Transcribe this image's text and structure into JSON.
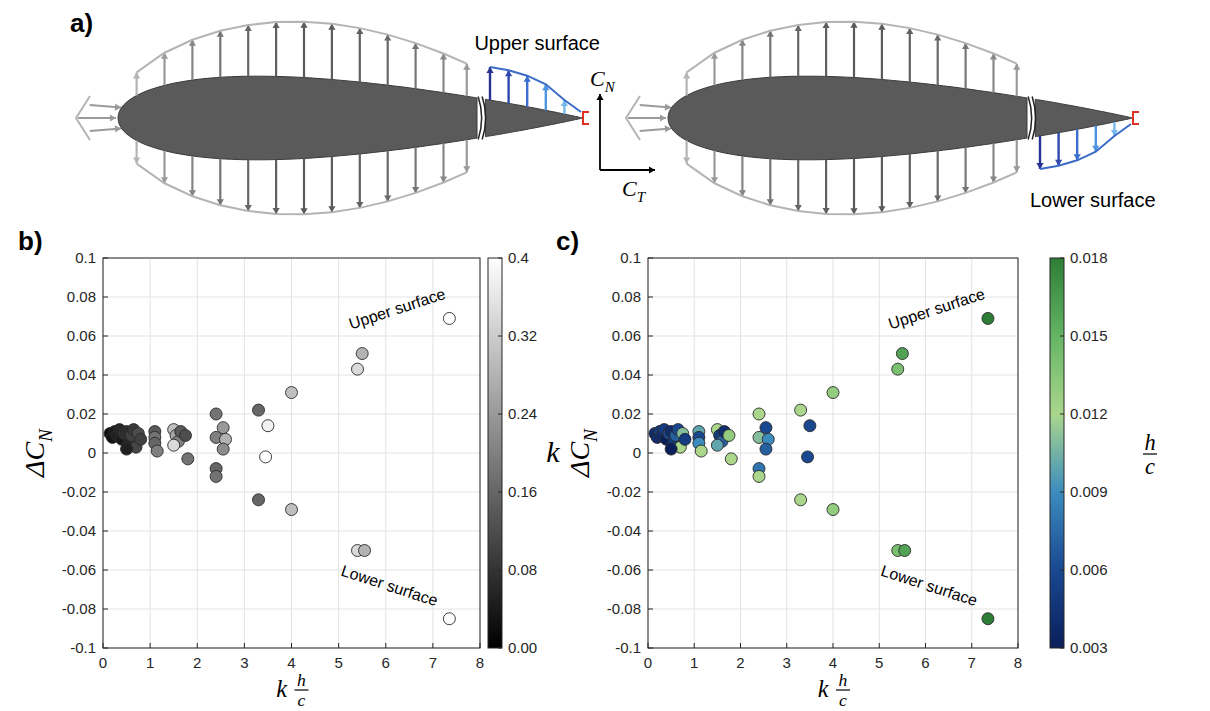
{
  "diagram": {
    "panel_label": "a)",
    "labels": [
      "Upper surface",
      "Lower surface"
    ],
    "axis_labels": [
      {
        "text": "C",
        "subscript": "N"
      },
      {
        "text": "C",
        "subscript": "T"
      }
    ]
  },
  "chart_data": [
    {
      "type": "scatter",
      "panel_label": "b)",
      "x_label": {
        "factor": "k",
        "numerator": "h",
        "denominator": "c"
      },
      "y_label": {
        "text": "ΔC",
        "subscript": "N"
      },
      "x": [
        0.15,
        0.2,
        0.25,
        0.3,
        0.35,
        0.4,
        0.45,
        0.5,
        0.55,
        0.6,
        0.65,
        0.7,
        0.75,
        0.8,
        0.5,
        1.1,
        1.1,
        1.1,
        1.15,
        1.5,
        1.55,
        1.6,
        1.5,
        1.65,
        1.75,
        1.8,
        2.4,
        2.4,
        2.4,
        2.4,
        2.55,
        2.6,
        2.55,
        3.3,
        3.3,
        3.5,
        3.45,
        4.0,
        4.0,
        5.4,
        5.5,
        5.4,
        5.55,
        7.35,
        7.35
      ],
      "values": [
        0.01,
        0.008,
        0.011,
        0.009,
        0.012,
        0.007,
        0.01,
        0.011,
        0.005,
        0.009,
        0.012,
        0.003,
        0.01,
        0.007,
        0.002,
        0.011,
        0.008,
        0.005,
        0.001,
        0.012,
        0.009,
        0.006,
        0.004,
        0.011,
        0.009,
        -0.003,
        0.02,
        0.008,
        -0.008,
        -0.012,
        0.013,
        0.007,
        0.002,
        0.022,
        -0.024,
        0.014,
        -0.002,
        0.031,
        -0.029,
        0.043,
        0.051,
        -0.05,
        -0.05,
        0.069,
        -0.085
      ],
      "color_values": [
        0.02,
        0.03,
        0.04,
        0.05,
        0.06,
        0.04,
        0.08,
        0.07,
        0.06,
        0.1,
        0.09,
        0.11,
        0.12,
        0.1,
        0.05,
        0.14,
        0.18,
        0.16,
        0.2,
        0.3,
        0.26,
        0.2,
        0.34,
        0.14,
        0.12,
        0.18,
        0.18,
        0.2,
        0.16,
        0.18,
        0.24,
        0.28,
        0.22,
        0.16,
        0.16,
        0.38,
        0.4,
        0.3,
        0.3,
        0.34,
        0.28,
        0.34,
        0.28,
        0.4,
        0.4
      ],
      "colorbar": {
        "label": "k",
        "lim": [
          0,
          0.4
        ],
        "ticks": [
          {
            "value": 0,
            "label": "0.00"
          },
          0.08,
          0.16,
          0.24,
          0.32,
          0.4
        ]
      },
      "xlim": [
        0,
        8
      ],
      "ylim": [
        -0.1,
        0.1
      ],
      "xticks": [
        0,
        1,
        2,
        3,
        4,
        5,
        6,
        7,
        8
      ],
      "yticks": [
        -0.1,
        -0.08,
        -0.06,
        -0.04,
        -0.02,
        0,
        0.02,
        0.04,
        0.06,
        0.08,
        0.1
      ],
      "grid": true,
      "marker": "circle",
      "annotations": [
        "Upper surface",
        "Lower surface"
      ]
    },
    {
      "type": "scatter",
      "panel_label": "c)",
      "x_label": {
        "factor": "k",
        "numerator": "h",
        "denominator": "c"
      },
      "y_label": {
        "text": "ΔC",
        "subscript": "N"
      },
      "x": [
        0.15,
        0.2,
        0.25,
        0.3,
        0.35,
        0.4,
        0.45,
        0.5,
        0.55,
        0.6,
        0.65,
        0.7,
        0.75,
        0.8,
        0.5,
        1.1,
        1.1,
        1.1,
        1.15,
        1.5,
        1.55,
        1.6,
        1.5,
        1.65,
        1.75,
        1.8,
        2.4,
        2.4,
        2.4,
        2.4,
        2.55,
        2.6,
        2.55,
        3.3,
        3.3,
        3.5,
        3.45,
        4.0,
        4.0,
        5.4,
        5.5,
        5.4,
        5.55,
        7.35,
        7.35
      ],
      "values": [
        0.01,
        0.008,
        0.011,
        0.009,
        0.012,
        0.007,
        0.01,
        0.011,
        0.005,
        0.009,
        0.012,
        0.003,
        0.01,
        0.007,
        0.002,
        0.011,
        0.008,
        0.005,
        0.001,
        0.012,
        0.009,
        0.006,
        0.004,
        0.011,
        0.009,
        -0.003,
        0.02,
        0.008,
        -0.008,
        -0.012,
        0.013,
        0.007,
        0.002,
        0.022,
        -0.024,
        0.014,
        -0.002,
        0.031,
        -0.029,
        0.043,
        0.051,
        -0.05,
        -0.05,
        0.069,
        -0.085
      ],
      "color_values": [
        0.004,
        0.004,
        0.005,
        0.004,
        0.005,
        0.003,
        0.006,
        0.004,
        0.005,
        0.007,
        0.006,
        0.012,
        0.011,
        0.005,
        0.003,
        0.01,
        0.006,
        0.009,
        0.012,
        0.012,
        0.005,
        0.007,
        0.01,
        0.004,
        0.013,
        0.012,
        0.012,
        0.011,
        0.008,
        0.012,
        0.006,
        0.009,
        0.007,
        0.012,
        0.012,
        0.006,
        0.006,
        0.013,
        0.013,
        0.014,
        0.016,
        0.014,
        0.016,
        0.018,
        0.018
      ],
      "colorbar": {
        "label": {
          "numerator": "h",
          "denominator": "c"
        },
        "lim": [
          0.003,
          0.018
        ],
        "ticks": [
          0.003,
          0.006,
          0.009,
          0.012,
          0.015,
          0.018
        ]
      },
      "xlim": [
        0,
        8
      ],
      "ylim": [
        -0.1,
        0.1
      ],
      "xticks": [
        0,
        1,
        2,
        3,
        4,
        5,
        6,
        7,
        8
      ],
      "yticks": [
        -0.1,
        -0.08,
        -0.06,
        -0.04,
        -0.02,
        0,
        0.02,
        0.04,
        0.06,
        0.08,
        0.1
      ],
      "grid": true,
      "marker": "circle",
      "annotations": [
        "Upper surface",
        "Lower surface"
      ]
    }
  ]
}
